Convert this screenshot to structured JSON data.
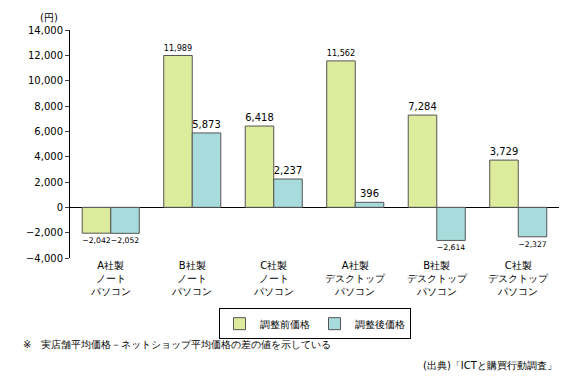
{
  "chart_data": {
    "type": "bar",
    "ylabel": "(円)",
    "categories": [
      "A社製\nノート\nパソコン",
      "B社製\nノート\nパソコン",
      "C社製\nノート\nパソコン",
      "A社製\nデスクトップ\nパソコン",
      "B社製\nデスクトップ\nパソコン",
      "C社製\nデスクトップ\nパソコン"
    ],
    "series": [
      {
        "name": "調整前価格",
        "color": "#dcec9c",
        "values": [
          -2042,
          11989,
          6418,
          11562,
          7284,
          3729
        ],
        "value_labels": [
          "−2,042",
          "11,989",
          "6,418",
          "11,562",
          "7,284",
          "3,729"
        ]
      },
      {
        "name": "調整後価格",
        "color": "#a8dcdc",
        "values": [
          -2052,
          5873,
          2237,
          396,
          -2614,
          -2327
        ],
        "value_labels": [
          "−2,052",
          "5,873",
          "2,237",
          "396",
          "−2,614",
          "−2,327"
        ]
      }
    ],
    "ylim": [
      -4000,
      14000
    ],
    "yticks": [
      {
        "value": -4000,
        "label": "−4,000"
      },
      {
        "value": -2000,
        "label": "−2,000"
      },
      0,
      {
        "value": 2000,
        "label": "2,000"
      },
      {
        "value": 4000,
        "label": "4,000"
      },
      {
        "value": 6000,
        "label": "6,000"
      },
      {
        "value": 8000,
        "label": "8,000"
      },
      {
        "value": 10000,
        "label": "10,000"
      },
      {
        "value": 12000,
        "label": "12,000"
      },
      {
        "value": 14000,
        "label": "14,000"
      }
    ],
    "grid": false,
    "legend": "bottom",
    "data_labels": true,
    "note": "※　実店舗平均価格－ネットショップ平均価格の差の値を示している",
    "source": "(出典)「ICTと購買行動調査」"
  }
}
